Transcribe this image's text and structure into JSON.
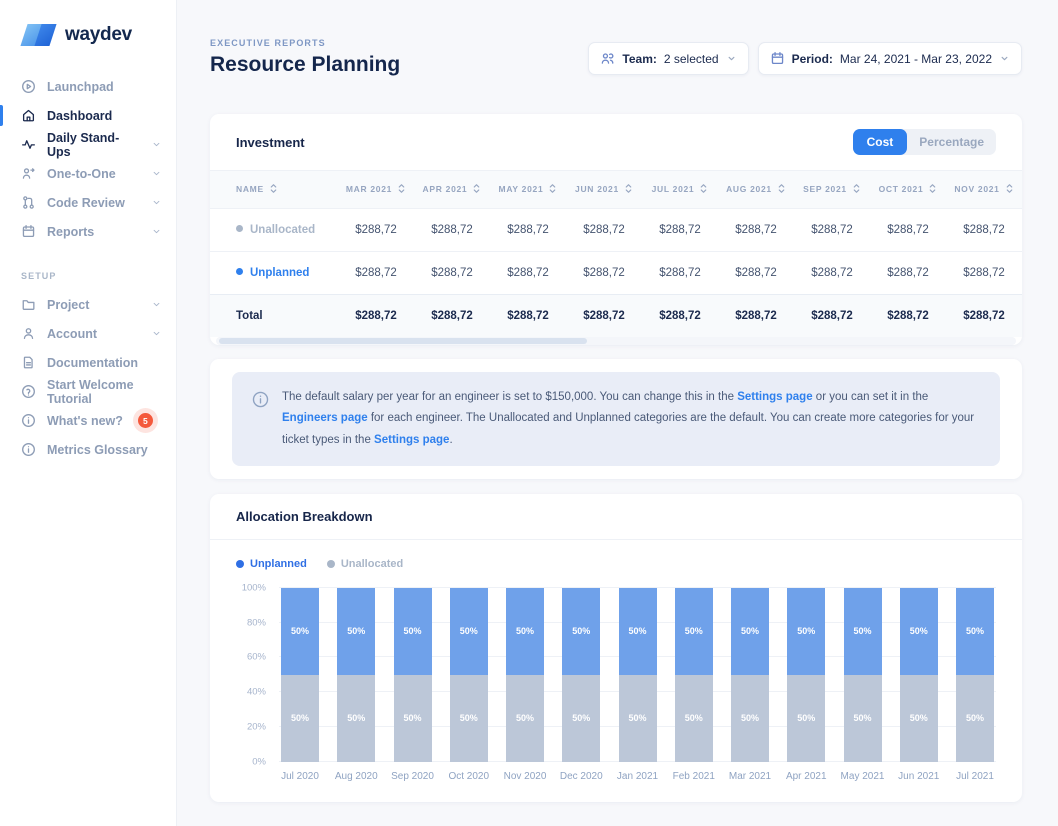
{
  "sidebar": {
    "logo_text": "waydev",
    "setup_label": "SETUP",
    "nav": [
      {
        "label": "Launchpad",
        "icon": "play-circle-icon",
        "state": "muted"
      },
      {
        "label": "Dashboard",
        "icon": "home-icon",
        "state": "active"
      },
      {
        "label": "Daily Stand-Ups",
        "icon": "activity-icon",
        "state": "dark",
        "chevron": true
      },
      {
        "label": "One-to-One",
        "icon": "one-to-one-icon",
        "state": "muted",
        "chevron": true
      },
      {
        "label": "Code Review",
        "icon": "code-review-icon",
        "state": "muted",
        "chevron": true
      },
      {
        "label": "Reports",
        "icon": "calendar-icon",
        "state": "muted",
        "chevron": true
      }
    ],
    "setup": [
      {
        "label": "Project",
        "icon": "folder-icon",
        "state": "muted",
        "chevron": true
      },
      {
        "label": "Account",
        "icon": "user-icon",
        "state": "muted",
        "chevron": true
      },
      {
        "label": "Documentation",
        "icon": "document-icon",
        "state": "muted"
      },
      {
        "label": "Start Welcome Tutorial",
        "icon": "question-circle-icon",
        "state": "muted"
      },
      {
        "label": "What's new?",
        "icon": "info-circle-icon",
        "state": "muted",
        "badge": "5"
      },
      {
        "label": "Metrics Glossary",
        "icon": "info-circle-icon",
        "state": "muted"
      }
    ]
  },
  "header": {
    "eyebrow": "EXECUTIVE REPORTS",
    "title": "Resource Planning",
    "team_button": {
      "label": "Team:",
      "value": "2 selected"
    },
    "period_button": {
      "label": "Period:",
      "value": "Mar 24, 2021 - Mar 23, 2022"
    }
  },
  "investment": {
    "title": "Investment",
    "toggle": {
      "options": [
        "Cost",
        "Percentage"
      ],
      "active": "Cost"
    },
    "columns": [
      "NAME",
      "MAR 2021",
      "APR 2021",
      "MAY 2021",
      "JUN 2021",
      "JUL 2021",
      "AUG 2021",
      "SEP 2021",
      "OCT 2021",
      "NOV 2021"
    ],
    "rows": [
      {
        "name": "Unallocated",
        "type": "unallocated",
        "values": [
          "$288,72",
          "$288,72",
          "$288,72",
          "$288,72",
          "$288,72",
          "$288,72",
          "$288,72",
          "$288,72",
          "$288,72"
        ]
      },
      {
        "name": "Unplanned",
        "type": "unplanned",
        "values": [
          "$288,72",
          "$288,72",
          "$288,72",
          "$288,72",
          "$288,72",
          "$288,72",
          "$288,72",
          "$288,72",
          "$288,72"
        ]
      },
      {
        "name": "Total",
        "type": "total",
        "values": [
          "$288,72",
          "$288,72",
          "$288,72",
          "$288,72",
          "$288,72",
          "$288,72",
          "$288,72",
          "$288,72",
          "$288,72"
        ]
      }
    ]
  },
  "note": {
    "parts": [
      {
        "text": "The default salary per year for an engineer is set to $150,000. You can change this in the "
      },
      {
        "link": "Settings page"
      },
      {
        "text": " or you can set it in the "
      },
      {
        "link": "Engineers page"
      },
      {
        "text": " for each engineer. The Unallocated and Unplanned categories are the default. You can create more categories for your ticket types in the "
      },
      {
        "link": "Settings page"
      },
      {
        "text": "."
      }
    ]
  },
  "allocation": {
    "title": "Allocation Breakdown"
  },
  "chart_data": {
    "type": "bar",
    "stacked": true,
    "title": "Allocation Breakdown",
    "categories": [
      "Jul 2020",
      "Aug 2020",
      "Sep 2020",
      "Oct 2020",
      "Nov 2020",
      "Dec 2020",
      "Jan 2021",
      "Feb 2021",
      "Mar 2021",
      "Apr 2021",
      "May 2021",
      "Jun 2021",
      "Jul 2021"
    ],
    "series": [
      {
        "name": "Unplanned",
        "legend_color": "#2f6fe4",
        "bar_color": "#6fa1ea",
        "values": [
          50,
          50,
          50,
          50,
          50,
          50,
          50,
          50,
          50,
          50,
          50,
          50,
          50
        ]
      },
      {
        "name": "Unallocated",
        "legend_color": "#a9b6c8",
        "bar_color": "#bcc7d8",
        "values": [
          50,
          50,
          50,
          50,
          50,
          50,
          50,
          50,
          50,
          50,
          50,
          50,
          50
        ]
      }
    ],
    "bar_label": "50%",
    "yticks": [
      "0%",
      "20%",
      "40%",
      "60%",
      "80%",
      "100%"
    ],
    "ylim": [
      0,
      100
    ],
    "grid": true,
    "legend_position": "top-left"
  },
  "colors": {
    "accent": "#2f80ed",
    "badge": "#f4593c"
  }
}
